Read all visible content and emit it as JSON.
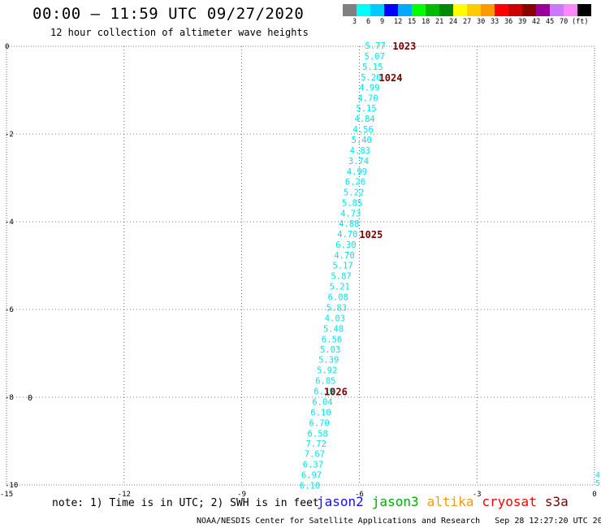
{
  "title": "00:00 – 11:59 UTC 09/27/2020",
  "subtitle": "12 hour collection of altimeter wave heights",
  "legend": {
    "colors": [
      "#808080",
      "#00ffff",
      "#00ccff",
      "#0000ff",
      "#00aaff",
      "#00ff00",
      "#00bb00",
      "#008800",
      "#ffff00",
      "#ffcc00",
      "#ff9900",
      "#ff0000",
      "#cc0000",
      "#880000",
      "#990099",
      "#cc77ff",
      "#ff88ff",
      "#000000"
    ],
    "labels": [
      "3",
      "6",
      "9",
      "12",
      "15",
      "18",
      "21",
      "24",
      "27",
      "30",
      "33",
      "36",
      "39",
      "42",
      "45",
      "70"
    ],
    "unit": "(ft)"
  },
  "axes": {
    "x_ticks": [
      "-15",
      "-12",
      "-9",
      "-6",
      "-3",
      "0"
    ],
    "y_ticks": [
      "0",
      "-2",
      "-4",
      "-6",
      "-8",
      "-10"
    ],
    "xlim": [
      -15,
      0
    ],
    "ylim": [
      -10,
      0
    ]
  },
  "track_color": "#00e5ee",
  "pressure_color": "#7a0000",
  "track_points": [
    {
      "lon": -5.77,
      "lat": 0.0,
      "swh": "5.77"
    },
    {
      "lon": -5.79,
      "lat": -0.24,
      "swh": "5.07"
    },
    {
      "lon": -5.84,
      "lat": -0.48,
      "swh": "5.15"
    },
    {
      "lon": -5.88,
      "lat": -0.72,
      "swh": "5.20"
    },
    {
      "lon": -5.92,
      "lat": -0.95,
      "swh": "4.99"
    },
    {
      "lon": -5.96,
      "lat": -1.19,
      "swh": "4.70"
    },
    {
      "lon": -6.0,
      "lat": -1.43,
      "swh": "5.15"
    },
    {
      "lon": -6.04,
      "lat": -1.67,
      "swh": "4.84"
    },
    {
      "lon": -6.08,
      "lat": -1.91,
      "swh": "4.56"
    },
    {
      "lon": -6.12,
      "lat": -2.15,
      "swh": "5.40"
    },
    {
      "lon": -6.16,
      "lat": -2.39,
      "swh": "4.83"
    },
    {
      "lon": -6.2,
      "lat": -2.63,
      "swh": "3.74"
    },
    {
      "lon": -6.24,
      "lat": -2.87,
      "swh": "4.99"
    },
    {
      "lon": -6.28,
      "lat": -3.1,
      "swh": "6.26"
    },
    {
      "lon": -6.32,
      "lat": -3.34,
      "swh": "5.22"
    },
    {
      "lon": -6.36,
      "lat": -3.58,
      "swh": "5.85"
    },
    {
      "lon": -6.4,
      "lat": -3.82,
      "swh": "4.73"
    },
    {
      "lon": -6.44,
      "lat": -4.06,
      "swh": "4.88"
    },
    {
      "lon": -6.48,
      "lat": -4.3,
      "swh": "4.70"
    },
    {
      "lon": -6.52,
      "lat": -4.54,
      "swh": "6.30"
    },
    {
      "lon": -6.56,
      "lat": -4.78,
      "swh": "4.70"
    },
    {
      "lon": -6.6,
      "lat": -5.01,
      "swh": "5.17"
    },
    {
      "lon": -6.64,
      "lat": -5.25,
      "swh": "5.87"
    },
    {
      "lon": -6.68,
      "lat": -5.49,
      "swh": "5.21"
    },
    {
      "lon": -6.72,
      "lat": -5.73,
      "swh": "6.08"
    },
    {
      "lon": -6.76,
      "lat": -5.97,
      "swh": "5.83"
    },
    {
      "lon": -6.8,
      "lat": -6.21,
      "swh": "4.03"
    },
    {
      "lon": -6.84,
      "lat": -6.45,
      "swh": "5.48"
    },
    {
      "lon": -6.88,
      "lat": -6.69,
      "swh": "6.56"
    },
    {
      "lon": -6.92,
      "lat": -6.93,
      "swh": "5.03"
    },
    {
      "lon": -6.96,
      "lat": -7.16,
      "swh": "5.39"
    },
    {
      "lon": -7.0,
      "lat": -7.4,
      "swh": "5.92"
    },
    {
      "lon": -7.04,
      "lat": -7.64,
      "swh": "6.85"
    },
    {
      "lon": -7.08,
      "lat": -7.88,
      "swh": "6.39"
    },
    {
      "lon": -7.12,
      "lat": -8.12,
      "swh": "6.04"
    },
    {
      "lon": -7.16,
      "lat": -8.36,
      "swh": "6.10"
    },
    {
      "lon": -7.2,
      "lat": -8.6,
      "swh": "6.70"
    },
    {
      "lon": -7.24,
      "lat": -8.84,
      "swh": "6.58"
    },
    {
      "lon": -7.28,
      "lat": -9.07,
      "swh": "7.72"
    },
    {
      "lon": -7.32,
      "lat": -9.31,
      "swh": "7.67"
    },
    {
      "lon": -7.36,
      "lat": -9.55,
      "swh": "6.37"
    },
    {
      "lon": -7.4,
      "lat": -9.79,
      "swh": "6.97"
    },
    {
      "lon": -7.44,
      "lat": -10.03,
      "swh": "6.10"
    }
  ],
  "pressure_labels": [
    {
      "lon": -5.15,
      "lat": 0.0,
      "text": "1023"
    },
    {
      "lon": -5.5,
      "lat": -0.72,
      "text": "1024"
    },
    {
      "lon": -6.0,
      "lat": -4.3,
      "text": "1025"
    },
    {
      "lon": -6.9,
      "lat": -7.88,
      "text": "1026"
    }
  ],
  "edge_marks": {
    "left_marker": "0",
    "right_values": [
      "4",
      "5"
    ]
  },
  "note": "note: 1) Time is in UTC; 2) SWH is in feet",
  "satellites": [
    {
      "name": "jason2",
      "color": "#1010ff"
    },
    {
      "name": "jason3",
      "color": "#00aa00"
    },
    {
      "name": "altika",
      "color": "#ff9900"
    },
    {
      "name": "cryosat",
      "color": "#ff0000"
    },
    {
      "name": "s3a",
      "color": "#7a0000"
    }
  ],
  "footer": {
    "org": "NOAA/NESDIS Center for Satellite Applications and Research",
    "timestamp": "Sep 28 12:27:20 UTC 2020"
  }
}
